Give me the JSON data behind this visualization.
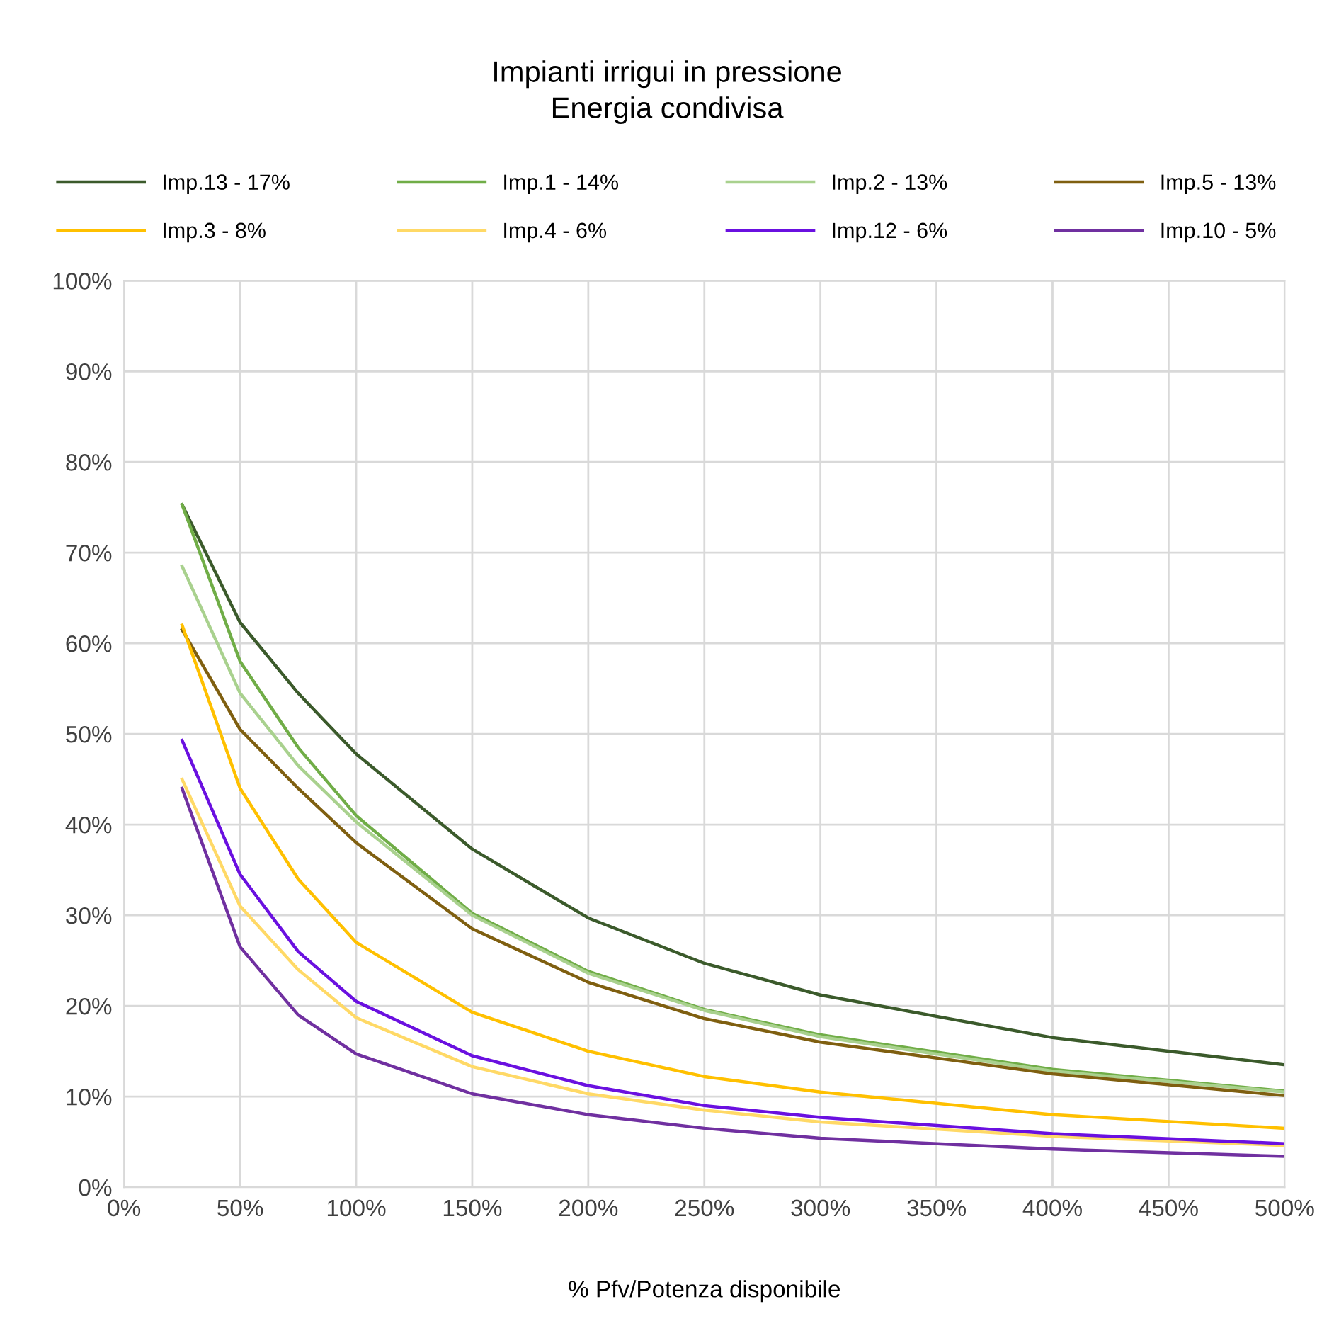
{
  "chart_data": {
    "type": "line",
    "title": "Impianti irrigui in pressione\nEnergia condivisa",
    "xlabel": "% Pfv/Potenza disponibile",
    "x": [
      25,
      50,
      75,
      100,
      150,
      200,
      250,
      300,
      400,
      500
    ],
    "series": [
      {
        "name": "Imp.13 - 17%",
        "color": "#3b5a2b",
        "values": [
          75.3,
          62.3,
          54.5,
          47.8,
          37.3,
          29.7,
          24.7,
          21.2,
          16.5,
          13.5
        ]
      },
      {
        "name": "Imp.1 - 14%",
        "color": "#70ad47",
        "values": [
          75.3,
          58,
          48.5,
          41,
          30.2,
          23.8,
          19.6,
          16.8,
          13,
          10.6
        ]
      },
      {
        "name": "Imp.2 - 13%",
        "color": "#a9d18e",
        "values": [
          68.5,
          54.5,
          46.5,
          40.3,
          30,
          23.6,
          19.5,
          16.6,
          12.8,
          10.5
        ]
      },
      {
        "name": "Imp.5 - 13%",
        "color": "#7f5f10",
        "values": [
          61.5,
          50.5,
          44,
          38,
          28.5,
          22.6,
          18.6,
          16,
          12.5,
          10.1
        ]
      },
      {
        "name": "Imp.3 - 8%",
        "color": "#ffc000",
        "values": [
          62,
          44,
          34,
          27,
          19.3,
          15,
          12.2,
          10.5,
          8,
          6.5
        ]
      },
      {
        "name": "Imp.4 - 6%",
        "color": "#ffd966",
        "values": [
          45,
          31,
          24,
          18.7,
          13.3,
          10.3,
          8.5,
          7.2,
          5.6,
          4.6
        ]
      },
      {
        "name": "Imp.12 - 6%",
        "color": "#6a10e0",
        "values": [
          49.3,
          34.5,
          26,
          20.5,
          14.5,
          11.2,
          9,
          7.7,
          5.9,
          4.8
        ]
      },
      {
        "name": "Imp.10 - 5%",
        "color": "#7030a0",
        "values": [
          44,
          26.5,
          19,
          14.7,
          10.3,
          8,
          6.5,
          5.4,
          4.2,
          3.4
        ]
      }
    ],
    "xlim": [
      0,
      500
    ],
    "xticks": [
      {
        "value": 0,
        "label": "0%"
      },
      {
        "value": 50,
        "label": "50%"
      },
      {
        "value": 100,
        "label": "100%"
      },
      {
        "value": 150,
        "label": "150%"
      },
      {
        "value": 200,
        "label": "200%"
      },
      {
        "value": 250,
        "label": "250%"
      },
      {
        "value": 300,
        "label": "300%"
      },
      {
        "value": 350,
        "label": "350%"
      },
      {
        "value": 400,
        "label": "400%"
      },
      {
        "value": 450,
        "label": "450%"
      },
      {
        "value": 500,
        "label": "500%"
      }
    ],
    "ylim": [
      0,
      100
    ],
    "yticks": [
      {
        "value": 0,
        "label": "0%"
      },
      {
        "value": 10,
        "label": "10%"
      },
      {
        "value": 20,
        "label": "20%"
      },
      {
        "value": 30,
        "label": "30%"
      },
      {
        "value": 40,
        "label": "40%"
      },
      {
        "value": 50,
        "label": "50%"
      },
      {
        "value": 60,
        "label": "60%"
      },
      {
        "value": 70,
        "label": "70%"
      },
      {
        "value": 80,
        "label": "80%"
      },
      {
        "value": 90,
        "label": "90%"
      },
      {
        "value": 100,
        "label": "100%"
      }
    ],
    "grid": true,
    "legend": "top",
    "marker": "none",
    "line_style": "solid"
  }
}
